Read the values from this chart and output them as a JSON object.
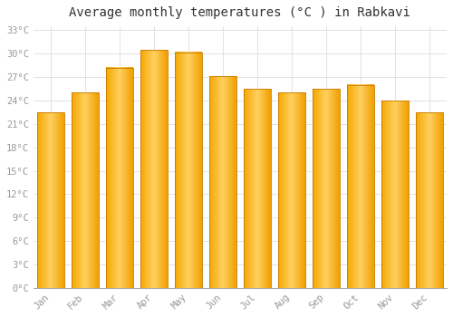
{
  "title": "Average monthly temperatures (°C ) in Rabkavi",
  "months": [
    "Jan",
    "Feb",
    "Mar",
    "Apr",
    "May",
    "Jun",
    "Jul",
    "Aug",
    "Sep",
    "Oct",
    "Nov",
    "Dec"
  ],
  "values": [
    22.5,
    25.0,
    28.2,
    30.5,
    30.2,
    27.1,
    25.5,
    25.0,
    25.5,
    26.0,
    24.0,
    22.5
  ],
  "bar_color_left": "#F5A800",
  "bar_color_center": "#FFD060",
  "bar_color_right": "#F0A000",
  "bar_edge_color": "#C87800",
  "background_color": "#FFFFFF",
  "grid_color": "#DDDDDD",
  "ytick_min": 0,
  "ytick_max": 33,
  "ytick_step": 3,
  "title_fontsize": 10,
  "tick_fontsize": 7.5,
  "tick_font_color": "#999999"
}
